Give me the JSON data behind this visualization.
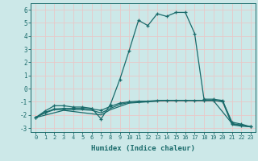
{
  "xlabel": "Humidex (Indice chaleur)",
  "bg_color": "#cce8e8",
  "grid_color": "#e8c8c8",
  "line_color": "#1a6b6b",
  "xlim": [
    -0.5,
    23.5
  ],
  "ylim": [
    -3.3,
    6.5
  ],
  "yticks": [
    -3,
    -2,
    -1,
    0,
    1,
    2,
    3,
    4,
    5,
    6
  ],
  "xticks": [
    0,
    1,
    2,
    3,
    4,
    5,
    6,
    7,
    8,
    9,
    10,
    11,
    12,
    13,
    14,
    15,
    16,
    17,
    18,
    19,
    20,
    21,
    22,
    23
  ],
  "series1": [
    [
      0,
      -2.2
    ],
    [
      1,
      -1.7
    ],
    [
      2,
      -1.3
    ],
    [
      3,
      -1.3
    ],
    [
      4,
      -1.4
    ],
    [
      5,
      -1.4
    ],
    [
      6,
      -1.5
    ],
    [
      7,
      -2.3
    ],
    [
      8,
      -1.2
    ],
    [
      9,
      0.7
    ],
    [
      10,
      2.9
    ],
    [
      11,
      5.2
    ],
    [
      12,
      4.8
    ],
    [
      13,
      5.7
    ],
    [
      14,
      5.5
    ],
    [
      15,
      5.8
    ],
    [
      16,
      5.8
    ],
    [
      17,
      4.2
    ],
    [
      18,
      -0.8
    ],
    [
      19,
      -0.8
    ],
    [
      20,
      -0.9
    ],
    [
      21,
      -2.7
    ],
    [
      22,
      -2.8
    ],
    [
      23,
      -2.9
    ]
  ],
  "series2": [
    [
      0,
      -2.2
    ],
    [
      1,
      -1.8
    ],
    [
      2,
      -1.55
    ],
    [
      3,
      -1.5
    ],
    [
      4,
      -1.5
    ],
    [
      5,
      -1.5
    ],
    [
      6,
      -1.55
    ],
    [
      7,
      -1.65
    ],
    [
      8,
      -1.35
    ],
    [
      9,
      -1.1
    ],
    [
      10,
      -1.0
    ],
    [
      11,
      -0.95
    ],
    [
      12,
      -0.95
    ],
    [
      13,
      -0.9
    ],
    [
      14,
      -0.9
    ],
    [
      15,
      -0.9
    ],
    [
      16,
      -0.9
    ],
    [
      17,
      -0.9
    ],
    [
      18,
      -0.9
    ],
    [
      19,
      -0.9
    ],
    [
      20,
      -0.95
    ],
    [
      21,
      -2.55
    ],
    [
      22,
      -2.7
    ],
    [
      23,
      -2.9
    ]
  ],
  "series3": [
    [
      0,
      -2.2
    ],
    [
      1,
      -1.85
    ],
    [
      2,
      -1.6
    ],
    [
      3,
      -1.6
    ],
    [
      4,
      -1.6
    ],
    [
      5,
      -1.6
    ],
    [
      6,
      -1.65
    ],
    [
      7,
      -1.85
    ],
    [
      8,
      -1.5
    ],
    [
      9,
      -1.2
    ],
    [
      10,
      -1.05
    ],
    [
      14,
      -0.9
    ],
    [
      19,
      -0.9
    ],
    [
      21,
      -2.65
    ],
    [
      23,
      -2.9
    ]
  ],
  "series4": [
    [
      0,
      -2.2
    ],
    [
      3,
      -1.65
    ],
    [
      7,
      -2.0
    ],
    [
      8,
      -1.6
    ],
    [
      10,
      -1.1
    ],
    [
      14,
      -0.9
    ],
    [
      19,
      -0.9
    ],
    [
      20,
      -1.0
    ],
    [
      21,
      -2.75
    ],
    [
      22,
      -2.85
    ],
    [
      23,
      -2.9
    ]
  ]
}
